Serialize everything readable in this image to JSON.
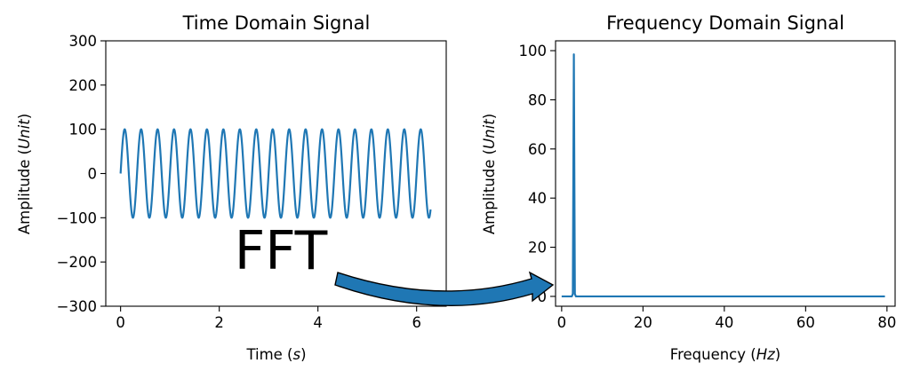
{
  "colors": {
    "series": "#1f77b4",
    "axes": "#000000",
    "background": "#ffffff"
  },
  "annotation": {
    "text": "FFT",
    "arrow": "curved-right"
  },
  "chart_data": [
    {
      "type": "line",
      "title": "Time Domain Signal",
      "xlabel": "Time (s)",
      "ylabel": "Amplitude (Unit)",
      "xlabel_parts": {
        "pre": "Time (",
        "var": "s",
        "post": ")"
      },
      "ylabel_parts": {
        "pre": "Amplitude (",
        "var": "Unit",
        "post": ")"
      },
      "xlim": [
        -0.3,
        6.6
      ],
      "ylim": [
        -300,
        300
      ],
      "xticks": [
        0,
        2,
        4,
        6
      ],
      "xtick_labels": [
        "0",
        "2",
        "4",
        "6"
      ],
      "yticks": [
        300,
        200,
        100,
        0,
        -100,
        -200,
        -300
      ],
      "ytick_labels": [
        "300",
        "200",
        "100",
        "0",
        "−100",
        "−200",
        "−300"
      ],
      "grid": false,
      "series": [
        {
          "function": "100*sin(2*pi*3*t)",
          "amplitude": 100,
          "frequency_hz": 3,
          "t_range": [
            0,
            6.283
          ],
          "color": "#1f77b4"
        }
      ]
    },
    {
      "type": "line",
      "title": "Frequency Domain Signal",
      "xlabel": "Frequency (Hz)",
      "ylabel": "Amplitude (Unit)",
      "xlabel_parts": {
        "pre": "Frequency (",
        "var": "Hz",
        "post": ")"
      },
      "ylabel_parts": {
        "pre": "Amplitude (",
        "var": "Unit",
        "post": ")"
      },
      "xlim": [
        -1.5,
        82
      ],
      "ylim": [
        -4,
        104
      ],
      "xticks": [
        0,
        20,
        40,
        60,
        80
      ],
      "xtick_labels": [
        "0",
        "20",
        "40",
        "60",
        "80"
      ],
      "yticks": [
        100,
        80,
        60,
        40,
        20,
        0
      ],
      "ytick_labels": [
        "100",
        "80",
        "60",
        "40",
        "20",
        "0"
      ],
      "grid": false,
      "series": [
        {
          "x": [
            0,
            2.5,
            2.75,
            3.0,
            3.25,
            3.5,
            79.5
          ],
          "y": [
            0,
            0,
            1,
            98.5,
            1,
            0,
            0
          ],
          "color": "#1f77b4"
        }
      ]
    }
  ]
}
